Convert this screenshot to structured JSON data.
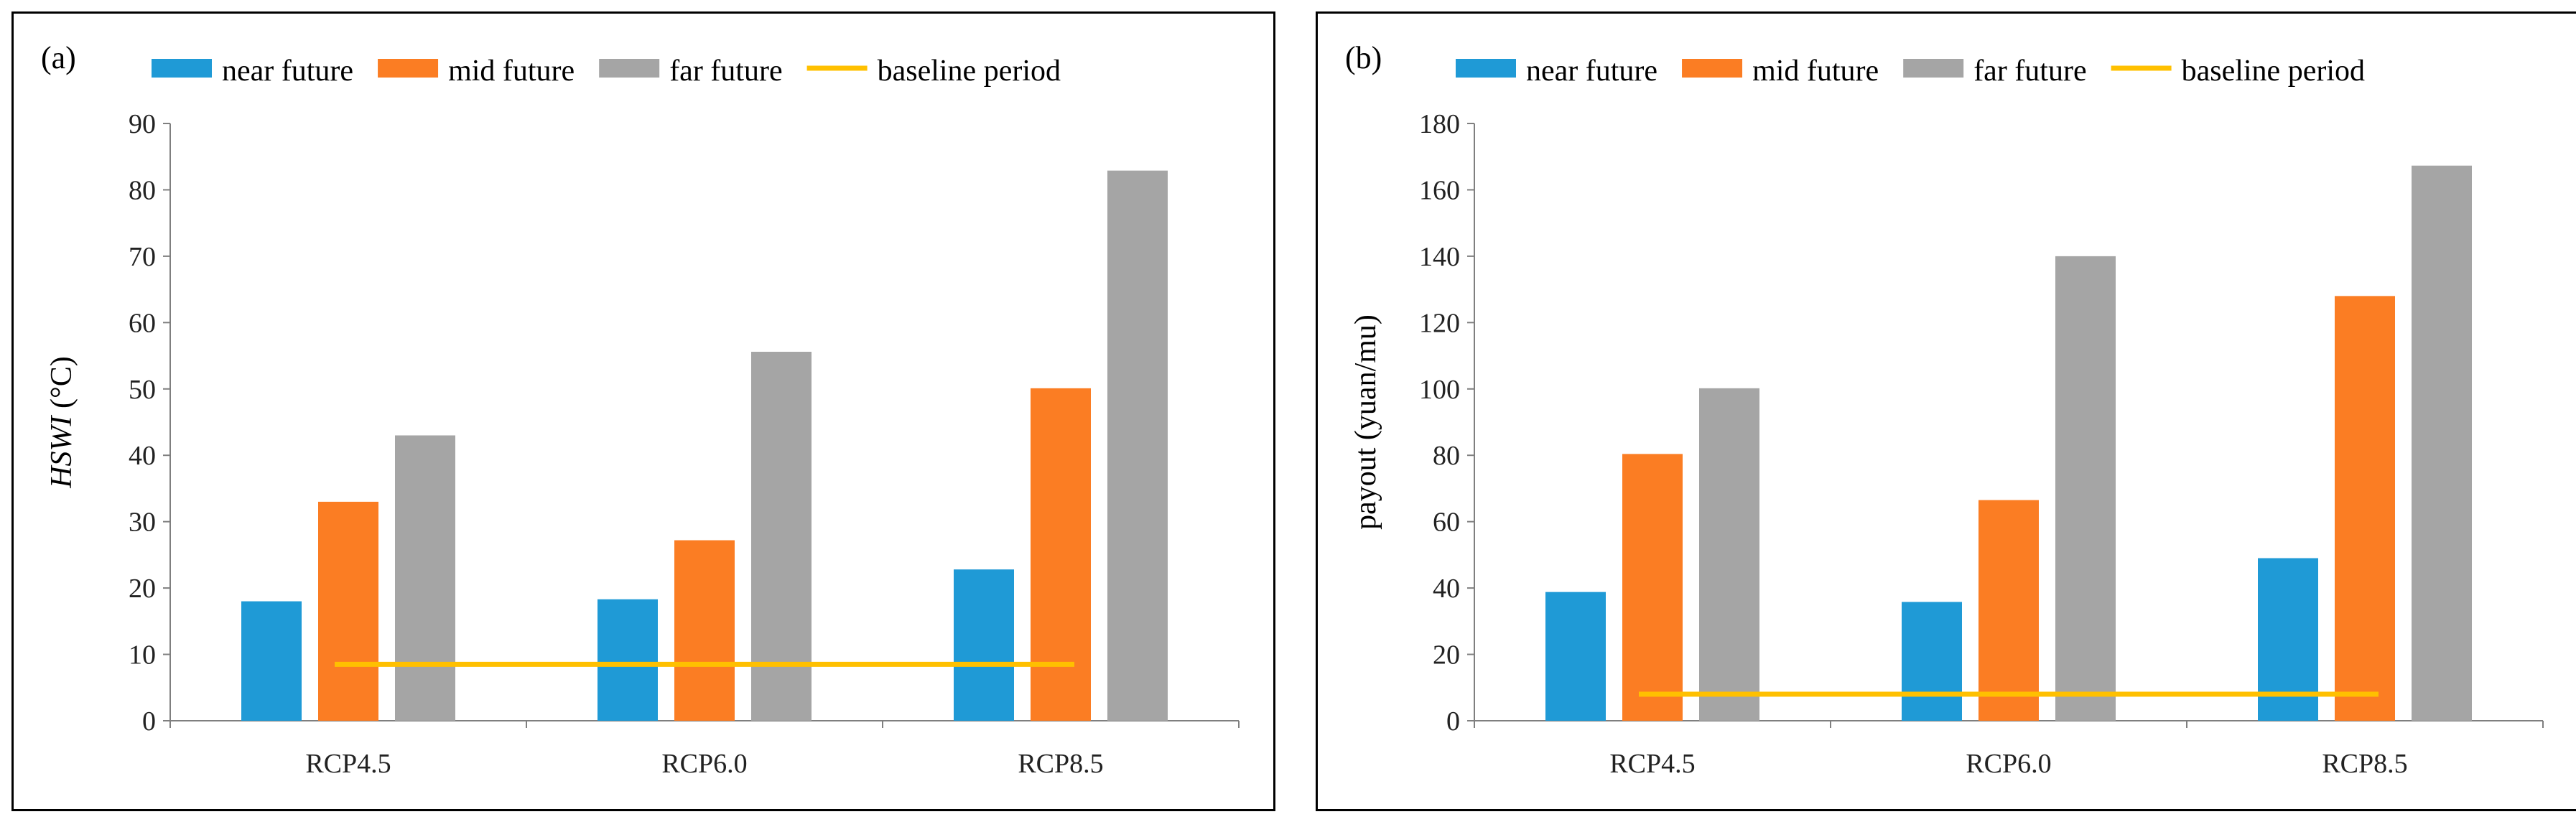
{
  "colors": {
    "near": "#1f9ad6",
    "mid": "#fb7d23",
    "far": "#a5a5a5",
    "baseline": "#ffc000"
  },
  "chart_data": [
    {
      "id": "a",
      "panel_label": "(a)",
      "type": "bar",
      "categories": [
        "RCP4.5",
        "RCP6.0",
        "RCP8.5"
      ],
      "series": [
        {
          "key": "near",
          "name": "near future",
          "values": [
            18,
            18.3,
            22.8
          ]
        },
        {
          "key": "mid",
          "name": "mid future",
          "values": [
            33,
            27.2,
            50.1
          ]
        },
        {
          "key": "far",
          "name": "far future",
          "values": [
            43,
            55.6,
            82.9
          ]
        }
      ],
      "baseline": {
        "name": "baseline period",
        "value": 8.5
      },
      "ylabel_italic": "HSWI",
      "ylabel_unit": " (°C)",
      "ylim": [
        0,
        90
      ],
      "yticks": [
        0,
        10,
        20,
        30,
        40,
        50,
        60,
        70,
        80,
        90
      ],
      "legend": "top",
      "grid": false
    },
    {
      "id": "b",
      "panel_label": "(b)",
      "type": "bar",
      "categories": [
        "RCP4.5",
        "RCP6.0",
        "RCP8.5"
      ],
      "series": [
        {
          "key": "near",
          "name": "near future",
          "values": [
            38.8,
            35.8,
            49
          ]
        },
        {
          "key": "mid",
          "name": "mid future",
          "values": [
            80.4,
            66.5,
            128
          ]
        },
        {
          "key": "far",
          "name": "far future",
          "values": [
            100.2,
            140,
            167.3
          ]
        }
      ],
      "baseline": {
        "name": "baseline period",
        "value": 8
      },
      "ylabel_italic": "",
      "ylabel_unit": "payout (yuan/mu)",
      "ylim": [
        0,
        180
      ],
      "yticks": [
        0,
        20,
        40,
        60,
        80,
        100,
        120,
        140,
        160,
        180
      ],
      "legend": "top",
      "grid": false
    }
  ]
}
